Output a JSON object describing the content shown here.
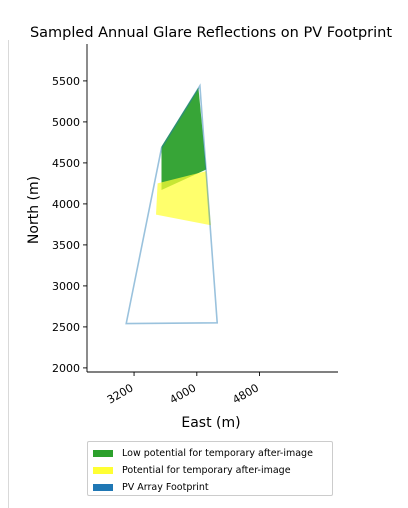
{
  "chart_data": {
    "type": "area",
    "title": "Sampled Annual Glare Reflections on PV Footprint",
    "xlabel": "East (m)",
    "ylabel": "North (m)",
    "xlim": [
      2600,
      5800
    ],
    "ylim": [
      1950,
      5950
    ],
    "xticks": [
      3200,
      4000,
      4800
    ],
    "yticks": [
      2000,
      2500,
      3000,
      3500,
      4000,
      4500,
      5000,
      5500
    ],
    "grid": false,
    "legend_position": "bottom-center",
    "colors": {
      "low": "#2ca02c",
      "potential": "#ffff33",
      "footprint": "#1f77b4"
    },
    "series": [
      {
        "name": "Low potential for temporary after-image",
        "polygon": [
          [
            3550,
            4700
          ],
          [
            4020,
            5420
          ],
          [
            4120,
            4420
          ],
          [
            3550,
            4170
          ]
        ]
      },
      {
        "name": "Potential for temporary after-image",
        "polygon": [
          [
            3500,
            4250
          ],
          [
            4120,
            4400
          ],
          [
            4180,
            3740
          ],
          [
            3480,
            3870
          ]
        ]
      },
      {
        "name": "PV Array Footprint",
        "polygon": [
          [
            3100,
            2540
          ],
          [
            3550,
            4680
          ],
          [
            4040,
            5440
          ],
          [
            4260,
            2550
          ]
        ]
      }
    ]
  }
}
